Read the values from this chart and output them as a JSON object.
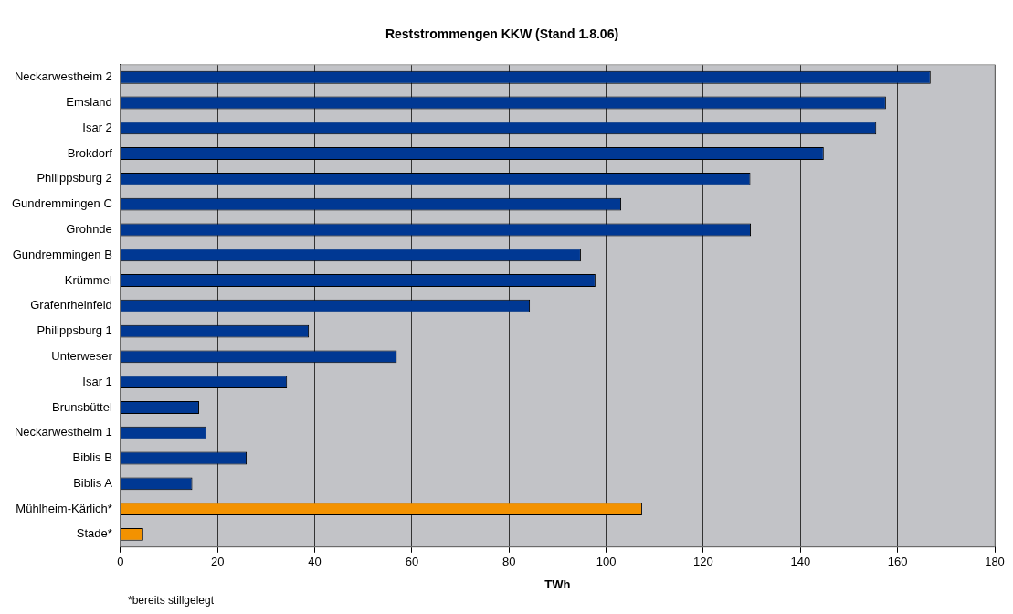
{
  "chart_data": {
    "type": "bar",
    "orientation": "horizontal",
    "title": "Reststrommengen KKW (Stand 1.8.06)",
    "xlabel": "TWh",
    "categories": [
      "Neckarwestheim 2",
      "Emsland",
      "Isar 2",
      "Brokdorf",
      "Philippsburg 2",
      "Gundremmingen C",
      "Grohnde",
      "Gundremmingen B",
      "Krümmel",
      "Grafenrheinfeld",
      "Philippsburg 1",
      "Unterweser",
      "Isar 1",
      "Brunsbüttel",
      "Neckarwestheim 1",
      "Biblis B",
      "Biblis A",
      "Mühlheim-Kärlich*",
      "Stade*"
    ],
    "values": [
      166.8,
      157.6,
      155.6,
      144.8,
      129.7,
      103.1,
      129.8,
      94.8,
      97.8,
      84.3,
      38.8,
      56.9,
      34.3,
      16.2,
      17.7,
      26.0,
      14.8,
      107.4,
      4.7
    ],
    "colors": [
      "#003893",
      "#003893",
      "#003893",
      "#003893",
      "#003893",
      "#003893",
      "#003893",
      "#003893",
      "#003893",
      "#003893",
      "#003893",
      "#003893",
      "#003893",
      "#003893",
      "#003893",
      "#003893",
      "#003893",
      "#f39200",
      "#f39200"
    ],
    "xlim": [
      0,
      180
    ],
    "xticks": [
      0,
      20,
      40,
      60,
      80,
      100,
      120,
      140,
      160,
      180
    ],
    "grid": "x",
    "legend": false,
    "annotations": [
      "*bereits stillgelegt"
    ]
  }
}
